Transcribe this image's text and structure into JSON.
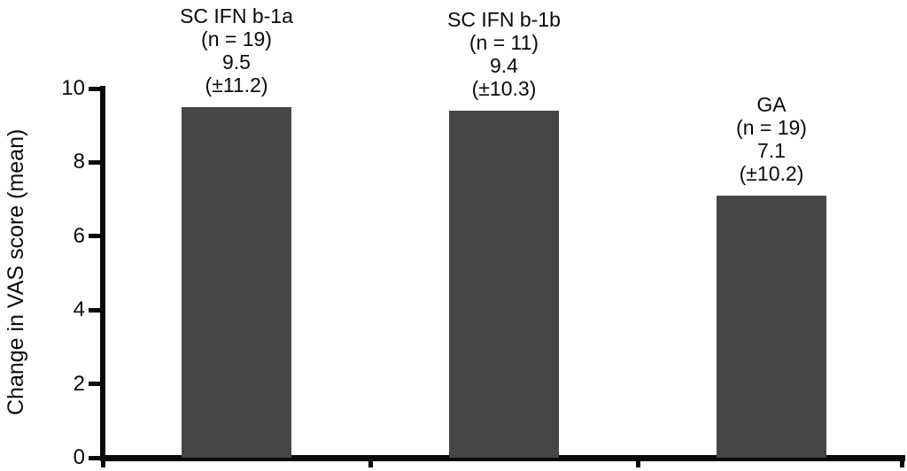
{
  "chart_data": {
    "type": "bar",
    "title": "",
    "xlabel": "",
    "ylabel": "Change in VAS score (mean)",
    "ylim": [
      0,
      10
    ],
    "yticks": [
      0,
      2,
      4,
      6,
      8,
      10
    ],
    "grid": false,
    "legend_position": "none",
    "bar_color": "#464646",
    "axis_color": "#0a0a0a",
    "categories": [
      "SC IFN b-1a",
      "SC IFN b-1b",
      "GA"
    ],
    "values": [
      9.5,
      9.4,
      7.1
    ],
    "groups": [
      {
        "category": "SC IFN b-1a",
        "n_label": "(n = 19)",
        "value": 9.5,
        "value_label": "9.5",
        "sd_label": "(±11.2)"
      },
      {
        "category": "SC IFN b-1b",
        "n_label": "(n = 11)",
        "value": 9.4,
        "value_label": "9.4",
        "sd_label": "(±10.3)"
      },
      {
        "category": "GA",
        "n_label": "(n = 19)",
        "value": 7.1,
        "value_label": "7.1",
        "sd_label": "(±10.2)"
      }
    ]
  }
}
